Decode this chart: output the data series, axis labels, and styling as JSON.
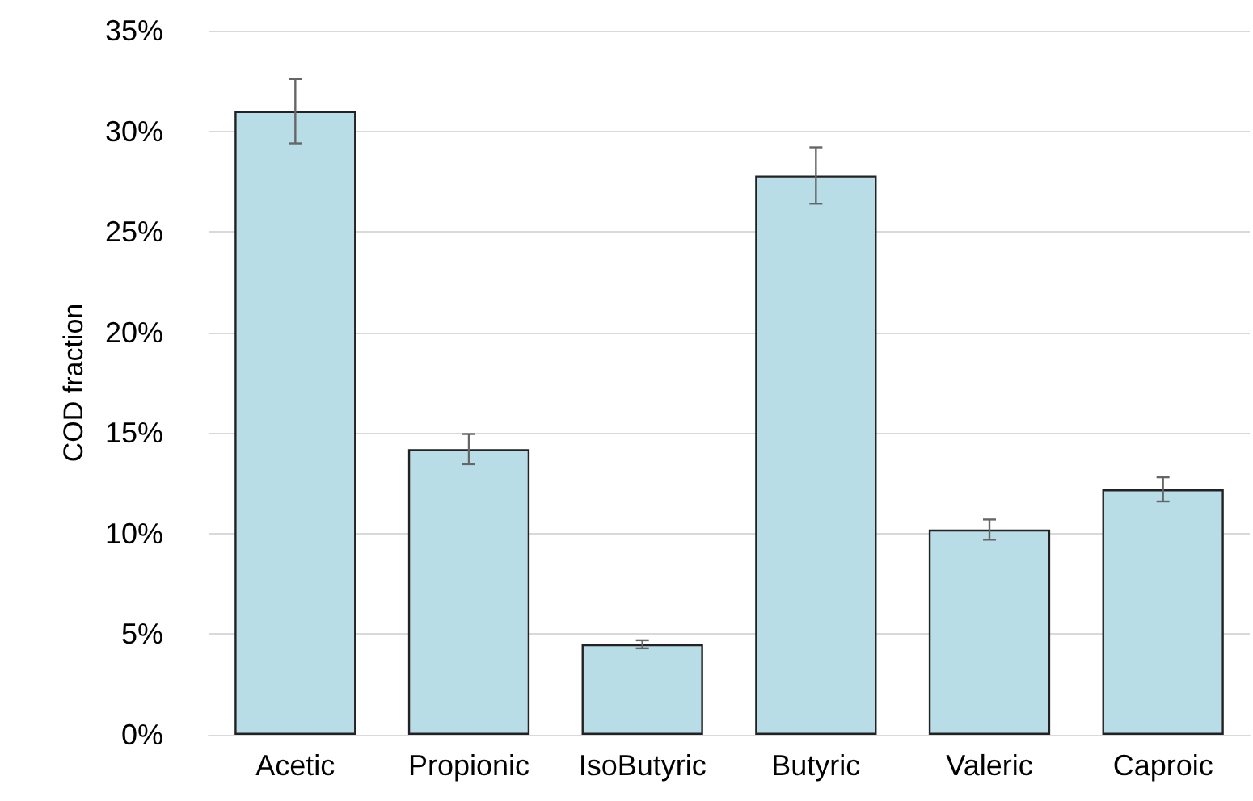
{
  "chart_data": {
    "type": "bar",
    "ylabel": "COD fraction",
    "categories": [
      "Acetic",
      "Propionic",
      "IsoButyric",
      "Butyric",
      "Valeric",
      "Caproic"
    ],
    "values": [
      31.0,
      14.2,
      4.5,
      27.8,
      10.2,
      12.2
    ],
    "errors": [
      1.6,
      0.75,
      0.2,
      1.4,
      0.5,
      0.6
    ],
    "color": "#b8dde7",
    "ylim": [
      0,
      35
    ],
    "yticks": [
      {
        "value": 0,
        "label": "0%"
      },
      {
        "value": 5,
        "label": "5%"
      },
      {
        "value": 10,
        "label": "10%"
      },
      {
        "value": 15,
        "label": "15%"
      },
      {
        "value": 20,
        "label": "20%"
      },
      {
        "value": 25,
        "label": "25%"
      },
      {
        "value": 30,
        "label": "30%"
      },
      {
        "value": 35,
        "label": "35%"
      }
    ],
    "grid": "y"
  }
}
